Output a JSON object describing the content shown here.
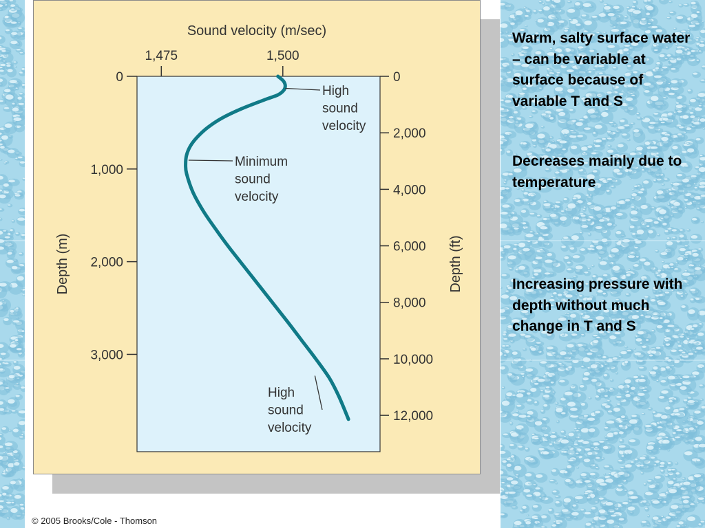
{
  "chart_data": {
    "type": "line",
    "title": "Sound velocity (m/sec)",
    "xlabel": "Sound velocity (m/sec)",
    "ylabel": "Depth (m)",
    "y2label": "Depth (ft)",
    "x_ticks": [
      "1,475",
      "1,500"
    ],
    "y_ticks": [
      "0",
      "1,000",
      "2,000",
      "3,000"
    ],
    "y2_ticks": [
      "0",
      "2,000",
      "4,000",
      "6,000",
      "8,000",
      "10,000",
      "12,000"
    ],
    "x_tick_values": [
      1475,
      1500
    ],
    "y_tick_values": [
      0,
      1000,
      2000,
      3000
    ],
    "y2_tick_values": [
      0,
      2000,
      4000,
      6000,
      8000,
      10000,
      12000
    ],
    "xlim": [
      1470,
      1520
    ],
    "ylim": [
      0,
      4050
    ],
    "y2lim": [
      0,
      13287
    ],
    "series": [
      {
        "color": "#107a87",
        "x": [
          1499,
          1500.1,
          1500.5,
          1500.2,
          1499.0,
          1496.4,
          1491.5,
          1487.5,
          1484.6,
          1482.5,
          1481.0,
          1480.2,
          1480.0,
          1480.2,
          1481.5,
          1483.6,
          1486.2,
          1489.0,
          1492.0,
          1495.0,
          1498.0,
          1501.0,
          1503.9,
          1506.8,
          1509.5,
          1511.5,
          1513.5
        ],
        "y": [
          0,
          50,
          100,
          150,
          200,
          250,
          350,
          450,
          550,
          650,
          750,
          850,
          950,
          1050,
          1250,
          1450,
          1650,
          1850,
          2050,
          2250,
          2450,
          2650,
          2850,
          3050,
          3250,
          3450,
          3700
        ]
      }
    ],
    "annotations": [
      {
        "text": "High sound velocity",
        "lines": [
          "High",
          "sound",
          "velocity"
        ]
      },
      {
        "text": "Minimum sound velocity",
        "lines": [
          "Minimum",
          "sound",
          "velocity"
        ]
      },
      {
        "text": "High sound velocity",
        "lines": [
          "High",
          "sound",
          "velocity"
        ]
      }
    ],
    "annotation_points": [
      {
        "x": 1500.5,
        "y": 130
      },
      {
        "x": 1480.6,
        "y": 905
      },
      {
        "x": 1506.6,
        "y": 3230
      }
    ],
    "grid": false,
    "legend": "none"
  },
  "notes": [
    "Warm, salty surface water – can be variable at surface because of variable T and S",
    "Decreases mainly due to temperature",
    "Increasing pressure with depth without much change in T and S"
  ],
  "credit": "© 2005 Brooks/Cole - Thomson",
  "colors": {
    "panel": "#fbeab6",
    "plot_area": "#ddf2fb",
    "curve": "#107a87",
    "water_background": "#aedbee"
  }
}
